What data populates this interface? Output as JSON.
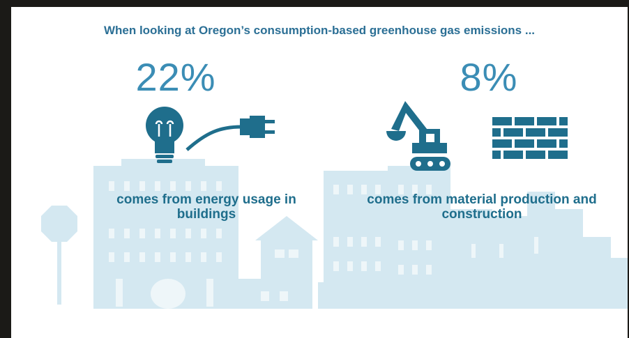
{
  "header": {
    "title": "When looking at Oregon’s consumption-based greenhouse gas emissions ..."
  },
  "stats": [
    {
      "value": "22%",
      "caption": "comes from energy usage in buildings"
    },
    {
      "value": "8%",
      "caption": "comes from material production and construction"
    }
  ]
}
